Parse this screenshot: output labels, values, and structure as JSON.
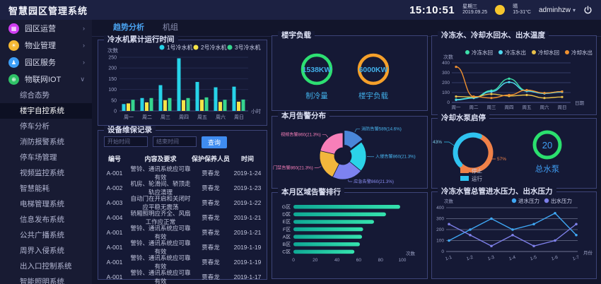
{
  "header": {
    "app_title": "智慧园区管理系统",
    "time": "15:10:51",
    "weekday": "星期三",
    "date": "2019.09.25",
    "weather_text": "晴",
    "temp_range": "15-31°C",
    "username": "adminhzw"
  },
  "icons": {
    "park": "▦",
    "property": "☀",
    "service": "♟",
    "iot": "⊕",
    "chevron_right": "›",
    "chevron_down": "∨",
    "caret_down": "▾"
  },
  "sidebar": {
    "top_items": [
      {
        "label": "园区运营",
        "icon": "park",
        "color": "#d03df0",
        "expanded": false
      },
      {
        "label": "物业管理",
        "icon": "property",
        "color": "#f5b832",
        "expanded": false
      },
      {
        "label": "园区服务",
        "icon": "service",
        "color": "#3d9ef5",
        "expanded": false
      },
      {
        "label": "物联网IOT",
        "icon": "iot",
        "color": "#2fc267",
        "expanded": true
      }
    ],
    "sub_items": [
      "综合态势",
      "楼宇自控系统",
      "停车分析",
      "消防报警系统",
      "停车场管理",
      "视频监控系统",
      "智慧能耗",
      "电梯管理系统",
      "信息发布系统",
      "公共广播系统",
      "周界入侵系统",
      "出入口控制系统",
      "智能照明系统"
    ],
    "active_sub_item": "楼宇自控系统"
  },
  "tabs": [
    {
      "label": "趋势分析",
      "active": true
    },
    {
      "label": "机组",
      "active": false
    }
  ],
  "panels": {
    "maintenance": {
      "title": "设备维保记录",
      "start_placeholder": "开始时间",
      "end_placeholder": "结束时间",
      "query_label": "查询",
      "columns": [
        "编号",
        "内容及要求",
        "保护保养人员",
        "时间"
      ],
      "rows": [
        [
          "A-001",
          "警铃、通讯系统应可靠有效",
          "贾春龙",
          "2019-1-24"
        ],
        [
          "A-002",
          "机房、轮滑间、轿顶走轨应清理",
          "贾春龙",
          "2019-1-23"
        ],
        [
          "A-003",
          "自动门在开启和关闭时应平稳无震荡",
          "贾春龙",
          "2019-1-22"
        ],
        [
          "A-004",
          "轿厢照明应齐全、风扇工作应正常",
          "贾春龙",
          "2019-1-21"
        ],
        [
          "A-001",
          "警铃、通讯系统应可靠有效",
          "贾春龙",
          "2019-1-21"
        ],
        [
          "A-001",
          "警铃、通讯系统应可靠有效",
          "贾春龙",
          "2019-1-19"
        ],
        [
          "A-001",
          "警铃、通讯系统应可靠有效",
          "贾春龙",
          "2019-1-19"
        ],
        [
          "A-001",
          "警铃、通讯系统应可靠有效",
          "贾春龙",
          "2019-1-17"
        ]
      ]
    }
  },
  "chart_data": [
    {
      "name": "chiller_runtime",
      "type": "bar",
      "title": "冷水机累计运行时间",
      "categories": [
        "周一",
        "周二",
        "周三",
        "周四",
        "周五",
        "周六",
        "周日"
      ],
      "series": [
        {
          "name": "1号冷水机",
          "color": "#27d3e8",
          "values": [
            32,
            60,
            120,
            245,
            135,
            110,
            113
          ]
        },
        {
          "name": "2号冷水机",
          "color": "#f6e448",
          "values": [
            35,
            40,
            50,
            50,
            52,
            42,
            43
          ]
        },
        {
          "name": "3号冷水机",
          "color": "#35d58e",
          "values": [
            52,
            60,
            60,
            60,
            63,
            52,
            53
          ]
        }
      ],
      "ylabel": "次数",
      "x_unit": "小时",
      "ylim": [
        0,
        250
      ],
      "ytick_step": 50
    },
    {
      "name": "alarm_distribution",
      "type": "pie",
      "title": "本月告警分布",
      "slices": [
        {
          "label": "消防告警",
          "value": 589,
          "pct": "14.6%",
          "color": "#4a86d8",
          "label_color": "#49b6f0",
          "exploded": true
        },
        {
          "label": "入侵告警",
          "value": 860,
          "pct": "21.3%",
          "color": "#2bd3e8",
          "label_color": "#49b6f0",
          "exploded": false
        },
        {
          "label": "应急告警",
          "value": 860,
          "pct": "21.3%",
          "color": "#7d82f0",
          "label_color": "#8a8df2",
          "exploded": false
        },
        {
          "label": "门禁告警",
          "value": 860,
          "pct": "21.3%",
          "color": "#f2b63c",
          "label_color": "#f77fb9",
          "exploded": false
        },
        {
          "label": "视频告警",
          "value": 860,
          "pct": "21.3%",
          "color": "#f77fb9",
          "label_color": "#f77fb9",
          "exploded": false
        }
      ]
    },
    {
      "name": "alarm_ranking",
      "type": "bar",
      "orientation": "horizontal",
      "title": "本月区域告警排行",
      "categories": [
        "G区",
        "D区",
        "E区",
        "F区",
        "A区",
        "B区",
        "C区"
      ],
      "values": [
        98,
        85,
        74,
        64,
        63,
        61,
        56
      ],
      "x_unit": "次数",
      "xlim": [
        0,
        100
      ],
      "xtick_step": 20,
      "bar_gradient": [
        "#0fa895",
        "#35e3ae"
      ]
    },
    {
      "name": "water_temperature",
      "type": "line",
      "smooth": true,
      "title": "冷冻水、冷却水回水、出水温度",
      "x": [
        "周一",
        "周二",
        "周三",
        "周四",
        "周五",
        "周六",
        "周日"
      ],
      "series": [
        {
          "name": "冷冻水回",
          "color": "#3ddfa9",
          "values": [
            30,
            50,
            120,
            240,
            120,
            95,
            110
          ]
        },
        {
          "name": "冷冻水出",
          "color": "#4fd8ef",
          "values": [
            25,
            45,
            110,
            205,
            115,
            90,
            105
          ]
        },
        {
          "name": "冷却水回",
          "color": "#e8c04a",
          "values": [
            60,
            55,
            85,
            65,
            75,
            45,
            55
          ]
        },
        {
          "name": "冷却水出",
          "color": "#f0912f",
          "values": [
            360,
            60,
            45,
            75,
            125,
            95,
            110
          ]
        }
      ],
      "ylabel": "次数",
      "x_unit": "日期",
      "ylim": [
        0,
        400
      ],
      "ytick_step": 100
    },
    {
      "name": "pump_start_stop",
      "type": "pie",
      "variant": "donut",
      "title": "冷却水泵启停",
      "slices": [
        {
          "label": "停止",
          "pct": "57%",
          "color": "#f08148"
        },
        {
          "label": "运行",
          "pct": "43%",
          "color": "#2fc3f0"
        }
      ],
      "total": {
        "value": "20",
        "label": "总水泵",
        "ring_color": "#2be06e"
      }
    },
    {
      "name": "water_pressure",
      "type": "line",
      "smooth": false,
      "title": "冷冻水管总管进水压力、出水压力",
      "x": [
        "1-1",
        "1-2",
        "1-3",
        "1-4",
        "1-5",
        "1-6",
        "1-7"
      ],
      "series": [
        {
          "name": "进水压力",
          "color": "#3fa8f5",
          "values": [
            100,
            200,
            300,
            200,
            250,
            350,
            150
          ]
        },
        {
          "name": "出水压力",
          "color": "#7e80ea",
          "values": [
            250,
            150,
            50,
            150,
            50,
            100,
            250
          ]
        }
      ],
      "ylabel": "次数",
      "x_unit": "月份",
      "ylim": [
        0,
        400
      ],
      "ytick_step": 100
    },
    {
      "name": "building_load",
      "type": "gauge",
      "title": "楼宇负载",
      "gauges": [
        {
          "value": "1538KW",
          "label": "制冷量",
          "color": "#2ddf72"
        },
        {
          "value": "6000KW",
          "label": "楼宇负载",
          "color": "#f5a02a"
        }
      ],
      "value_color": "#41aee8"
    }
  ]
}
